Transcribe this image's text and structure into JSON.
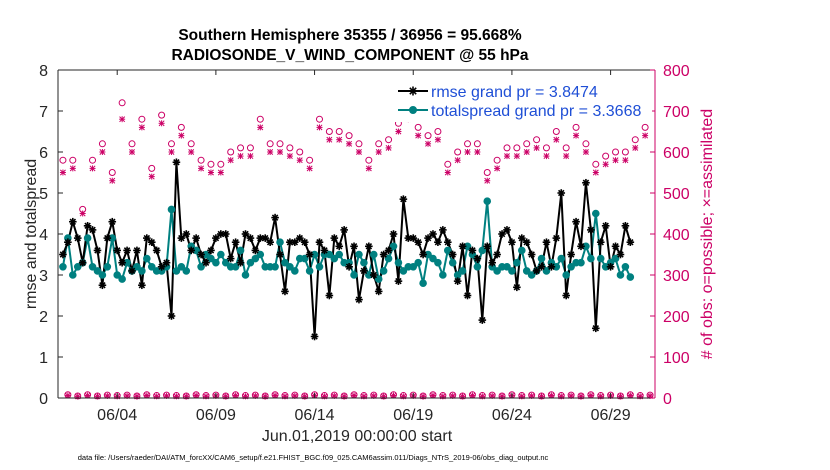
{
  "chart_data": {
    "type": "line",
    "title": "Southern Hemisphere 35355 / 36956 = 95.668%",
    "subtitle": "RADIOSONDE_V_WIND_COMPONENT @ 55 hPa",
    "xlabel": "Jun.01,2019 00:00:00 start",
    "ylabel_left": "rmse and totalspread",
    "ylabel_right": "# of obs: o=possible; ×=assimilated",
    "footnote": "data file: /Users/raeder/DAI/ATM_forcXX/CAM6_setup/f.e21.FHIST_BGC.f09_025.CAM6assim.011/Diags_NTrS_2019-06/obs_diag_output.nc",
    "xlim": [
      1,
      31.25
    ],
    "ylim_left": [
      0,
      8
    ],
    "ylim_right": [
      0,
      800
    ],
    "x_ticks": [
      4,
      9,
      14,
      19,
      24,
      29
    ],
    "x_tick_labels": [
      "06/04",
      "06/09",
      "06/14",
      "06/19",
      "06/24",
      "06/29"
    ],
    "y_ticks_left": [
      0,
      1,
      2,
      3,
      4,
      5,
      6,
      7,
      8
    ],
    "y_ticks_right": [
      0,
      100,
      200,
      300,
      400,
      500,
      600,
      700,
      800
    ],
    "x_days": [
      1.25,
      1.5,
      1.75,
      2,
      2.25,
      2.5,
      2.75,
      3,
      3.25,
      3.5,
      3.75,
      4,
      4.25,
      4.5,
      4.75,
      5,
      5.25,
      5.5,
      5.75,
      6,
      6.25,
      6.5,
      6.75,
      7,
      7.25,
      7.5,
      7.75,
      8,
      8.25,
      8.5,
      8.75,
      9,
      9.25,
      9.5,
      9.75,
      10,
      10.25,
      10.5,
      10.75,
      11,
      11.25,
      11.5,
      11.75,
      12,
      12.25,
      12.5,
      12.75,
      13,
      13.25,
      13.5,
      13.75,
      14,
      14.25,
      14.5,
      14.75,
      15,
      15.25,
      15.5,
      15.75,
      16,
      16.25,
      16.5,
      16.75,
      17,
      17.25,
      17.5,
      17.75,
      18,
      18.25,
      18.5,
      18.75,
      19,
      19.25,
      19.5,
      19.75,
      20,
      20.25,
      20.5,
      20.75,
      21,
      21.25,
      21.5,
      21.75,
      22,
      22.25,
      22.5,
      22.75,
      23,
      23.25,
      23.5,
      23.75,
      24,
      24.25,
      24.5,
      24.75,
      25,
      25.25,
      25.5,
      25.75,
      26,
      26.25,
      26.5,
      26.75,
      27,
      27.25,
      27.5,
      27.75,
      28,
      28.25,
      28.5,
      28.75,
      29,
      29.25,
      29.5,
      29.75,
      30,
      30.25,
      30.5,
      30.75,
      31
    ],
    "series": [
      {
        "name": "rmse grand pr = 3.8474",
        "color": "#000000",
        "marker": "asterisk",
        "values": [
          3.5,
          3.8,
          4.3,
          3.9,
          3.3,
          4.2,
          4.1,
          3.6,
          2.75,
          3.9,
          4.3,
          3.6,
          3.3,
          3.6,
          3.1,
          3.6,
          2.75,
          3.9,
          3.8,
          3.6,
          3.2,
          3.3,
          2.0,
          5.75,
          3.9,
          4.0,
          3.6,
          3.9,
          3.5,
          3.3,
          3.6,
          3.9,
          4.0,
          4.0,
          3.4,
          3.8,
          3.3,
          4.0,
          3.9,
          3.6,
          3.9,
          3.9,
          3.8,
          4.4,
          3.5,
          2.6,
          3.8,
          3.8,
          3.9,
          3.8,
          3.5,
          1.5,
          3.8,
          3.6,
          2.5,
          3.9,
          3.7,
          4.1,
          3.2,
          3.7,
          2.4,
          3.1,
          3.7,
          3.0,
          2.6,
          3.5,
          3.6,
          4.0,
          2.85,
          4.85,
          3.9,
          3.9,
          3.8,
          3.5,
          3.9,
          4.0,
          3.8,
          4.1,
          3.8,
          3.5,
          2.85,
          3.7,
          2.5,
          3.6,
          3.4,
          1.9,
          3.7,
          3.3,
          3.5,
          4.0,
          4.1,
          3.8,
          2.7,
          3.9,
          3.8,
          3.5,
          3.1,
          3.2,
          3.8,
          3.2,
          3.9,
          5.0,
          2.5,
          3.5,
          4.3,
          3.7,
          5.25,
          4.1,
          1.7,
          3.8,
          4.2,
          3.2,
          3.7,
          3.5,
          4.2,
          3.8
        ],
        "label_color": "#1f4fd6"
      },
      {
        "name": "totalspread grand pr = 3.3668",
        "color": "#008080",
        "marker": "circle",
        "values": [
          3.2,
          3.9,
          3.0,
          3.2,
          3.3,
          3.9,
          3.2,
          3.1,
          3.0,
          3.2,
          3.9,
          3.0,
          2.9,
          3.3,
          3.1,
          3.2,
          3.1,
          3.4,
          3.2,
          3.1,
          3.1,
          3.2,
          4.6,
          3.1,
          3.2,
          3.1,
          3.7,
          3.6,
          3.2,
          3.5,
          3.4,
          3.3,
          3.5,
          3.3,
          3.2,
          3.2,
          3.6,
          3.0,
          3.3,
          3.4,
          3.5,
          3.2,
          3.2,
          3.2,
          3.8,
          3.3,
          3.2,
          3.1,
          3.4,
          3.4,
          3.1,
          3.5,
          3.2,
          3.5,
          3.5,
          3.4,
          3.5,
          3.3,
          3.3,
          3.0,
          3.5,
          3.3,
          3.0,
          3.5,
          2.9,
          3.1,
          3.4,
          3.7,
          3.3,
          3.1,
          3.2,
          3.2,
          3.3,
          2.8,
          3.5,
          3.4,
          3.3,
          3.0,
          3.6,
          3.3,
          3.0,
          3.1,
          3.7,
          3.5,
          3.2,
          3.6,
          4.8,
          3.2,
          3.1,
          3.2,
          3.2,
          3.1,
          3.3,
          3.6,
          3.1,
          3.0,
          3.1,
          3.4,
          3.1,
          3.3,
          3.2,
          3.4,
          3.0,
          3.2,
          3.3,
          3.3,
          3.7,
          3.4,
          4.5,
          3.4,
          3.2,
          3.3,
          3.4,
          3.0,
          3.2,
          2.95
        ],
        "label_color": "#1f4fd6"
      },
      {
        "name": "possible",
        "color": "#cc0066",
        "marker": "open-circle",
        "axis": "right",
        "values_odd": [
          580,
          580,
          460,
          580,
          620,
          550,
          720,
          620,
          680,
          560,
          690,
          620,
          660,
          620,
          580,
          570,
          570,
          600,
          610,
          610,
          680,
          620,
          620,
          610,
          600,
          580,
          680,
          650,
          650,
          640,
          620,
          580,
          620,
          630,
          670,
          700,
          660,
          640,
          650,
          570,
          600,
          620,
          620,
          550,
          580,
          610,
          610,
          620,
          630,
          610,
          650,
          610,
          660,
          620,
          570,
          590,
          600,
          600,
          630,
          660
        ],
        "values_even": [
          8,
          5,
          8,
          5,
          7,
          6,
          7,
          5,
          8,
          6,
          7,
          6,
          5,
          8,
          6,
          7,
          5,
          8,
          6,
          7,
          5,
          8,
          6,
          7,
          5,
          8,
          6,
          7,
          5,
          8,
          6,
          7,
          5,
          8,
          6,
          7,
          5,
          8,
          6,
          7,
          5,
          8,
          6,
          7,
          5,
          8,
          6,
          7,
          5,
          8,
          6,
          7,
          5,
          8,
          6,
          7,
          5,
          8,
          6,
          7
        ]
      },
      {
        "name": "assimilated",
        "color": "#cc0066",
        "marker": "x",
        "axis": "right",
        "values_odd": [
          550,
          560,
          450,
          560,
          600,
          530,
          680,
          600,
          660,
          540,
          670,
          600,
          640,
          600,
          560,
          550,
          550,
          580,
          590,
          590,
          660,
          600,
          600,
          590,
          580,
          560,
          660,
          630,
          630,
          620,
          600,
          560,
          600,
          610,
          650,
          680,
          640,
          620,
          630,
          550,
          580,
          600,
          600,
          530,
          560,
          590,
          590,
          600,
          610,
          590,
          630,
          590,
          640,
          600,
          550,
          570,
          580,
          580,
          610,
          640
        ],
        "values_even": [
          6,
          4,
          6,
          4,
          5,
          4,
          5,
          4,
          6,
          4,
          5,
          4,
          4,
          6,
          4,
          5,
          4,
          6,
          4,
          5,
          4,
          6,
          4,
          5,
          4,
          6,
          4,
          5,
          4,
          6,
          4,
          5,
          4,
          6,
          4,
          5,
          4,
          6,
          4,
          5,
          4,
          6,
          4,
          5,
          4,
          6,
          4,
          5,
          4,
          6,
          4,
          5,
          4,
          6,
          4,
          5,
          4,
          6,
          4,
          5
        ]
      }
    ]
  }
}
